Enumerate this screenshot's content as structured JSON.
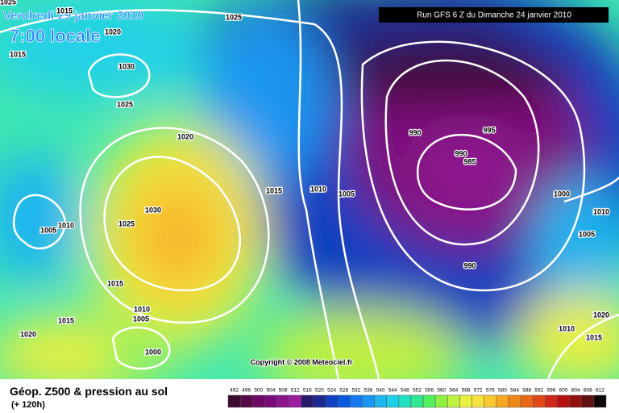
{
  "header": {
    "date": "Vendredi 29 janvier 2010",
    "time": "7:00 locale",
    "run": "Run GFS 6 Z du Dimanche 24 janvier 2010",
    "copyright": "Copyright © 2008 Meteociel.fr"
  },
  "legend": {
    "title": "Géop. Z500 & pression au sol",
    "subtitle": "(+ 120h)",
    "values": [
      492,
      496,
      500,
      504,
      508,
      512,
      516,
      520,
      524,
      528,
      532,
      536,
      540,
      544,
      548,
      552,
      556,
      560,
      564,
      568,
      572,
      576,
      580,
      584,
      588,
      592,
      596,
      600,
      604,
      608,
      612
    ],
    "colors": [
      "#3c0a2e",
      "#560a48",
      "#6e0a64",
      "#7a0a78",
      "#8c148c",
      "#9a1e9e",
      "#2a1a6a",
      "#1a2a90",
      "#1040c0",
      "#0a5ae0",
      "#1478f0",
      "#1a96f0",
      "#1eb4f0",
      "#20d0e8",
      "#20e0c0",
      "#30e890",
      "#50f060",
      "#90f040",
      "#c0f040",
      "#e8f040",
      "#f8e040",
      "#f8c830",
      "#f8a820",
      "#f08818",
      "#e86818",
      "#e04818",
      "#d02818",
      "#b81010",
      "#901010",
      "#601010",
      "#100808"
    ]
  },
  "isobars": [
    "1025",
    "1015",
    "1020",
    "1015",
    "1030",
    "1025",
    "1020",
    "1015",
    "1010",
    "1005",
    "990",
    "995",
    "990",
    "985",
    "1000",
    "1010",
    "1005",
    "990",
    "1030",
    "1025",
    "1010",
    "1005",
    "1015",
    "1010",
    "1005",
    "1015",
    "1020",
    "1000",
    "1020",
    "1010",
    "1015",
    "1025"
  ]
}
